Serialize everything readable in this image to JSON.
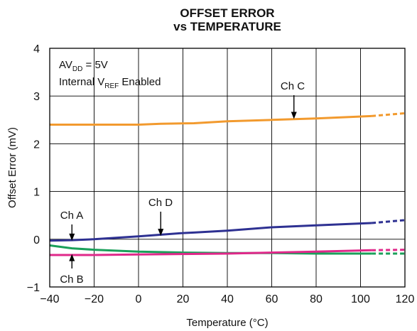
{
  "title_line1": "OFFSET ERROR",
  "title_line2": "vs TEMPERATURE",
  "chart_data": {
    "type": "line",
    "title": "OFFSET ERROR vs TEMPERATURE",
    "xlabel": "Temperature (°C)",
    "ylabel": "Offset Error (mV)",
    "xlim": [
      -40,
      120
    ],
    "ylim": [
      -1,
      4
    ],
    "xticks": [
      "−40",
      "−20",
      "0",
      "20",
      "40",
      "60",
      "80",
      "100",
      "120"
    ],
    "yticks": [
      "−1",
      "0",
      "1",
      "2",
      "3",
      "4"
    ],
    "grid": true,
    "conditions": {
      "line1_main": "AV",
      "line1_sub": "DD",
      "line1_tail": " = 5V",
      "line2_main": "Internal V",
      "line2_sub": "REF",
      "line2_tail": " Enabled"
    },
    "colors": {
      "Ch A": "#1aa05a",
      "Ch B": "#e0288a",
      "Ch C": "#f29a2e",
      "Ch D": "#2e3192"
    },
    "extrapolated_from_x": 105,
    "series": [
      {
        "name": "Ch C",
        "x": [
          -40,
          -20,
          0,
          10,
          25,
          40,
          60,
          80,
          105,
          120
        ],
        "y": [
          2.4,
          2.4,
          2.4,
          2.42,
          2.43,
          2.47,
          2.5,
          2.53,
          2.58,
          2.64
        ]
      },
      {
        "name": "Ch D",
        "x": [
          -40,
          -30,
          -20,
          0,
          20,
          25,
          40,
          60,
          80,
          100,
          105,
          120
        ],
        "y": [
          -0.03,
          -0.02,
          0.0,
          0.06,
          0.13,
          0.14,
          0.18,
          0.25,
          0.29,
          0.33,
          0.34,
          0.4
        ]
      },
      {
        "name": "Ch A",
        "x": [
          -40,
          -30,
          -20,
          0,
          20,
          40,
          60,
          80,
          105,
          120
        ],
        "y": [
          -0.13,
          -0.19,
          -0.22,
          -0.26,
          -0.28,
          -0.29,
          -0.29,
          -0.3,
          -0.3,
          -0.3
        ]
      },
      {
        "name": "Ch B",
        "x": [
          -40,
          -20,
          0,
          20,
          40,
          60,
          80,
          105,
          120
        ],
        "y": [
          -0.33,
          -0.33,
          -0.32,
          -0.31,
          -0.3,
          -0.28,
          -0.26,
          -0.23,
          -0.22
        ]
      }
    ],
    "annotations": [
      {
        "label": "Ch C",
        "series": "Ch C",
        "x": 70,
        "arrow_to": 2.52
      },
      {
        "label": "Ch D",
        "series": "Ch D",
        "x": 10,
        "arrow_to": 0.07
      },
      {
        "label": "Ch A",
        "series": "Ch A",
        "x": -30,
        "arrow_to": -0.03
      },
      {
        "label": "Ch B",
        "series": "Ch B",
        "x": -30,
        "arrow_to": -0.31
      }
    ]
  }
}
